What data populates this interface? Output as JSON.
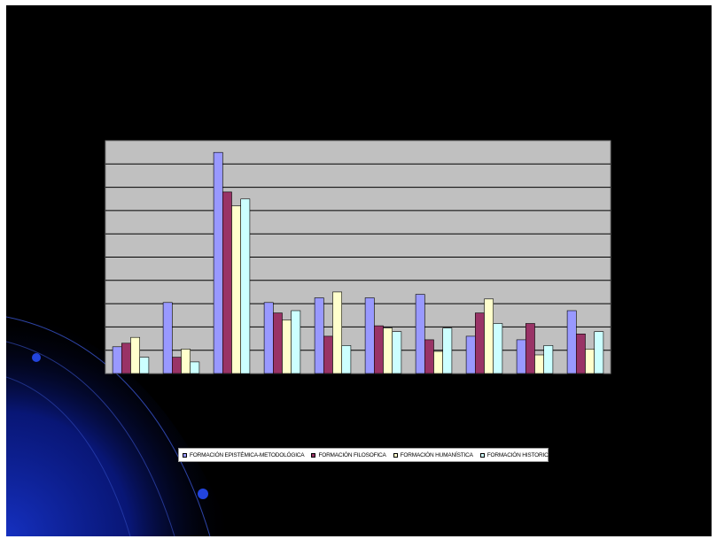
{
  "chart_data": {
    "type": "bar",
    "title": "",
    "xlabel": "",
    "ylabel": "",
    "categories": [
      "",
      "",
      "",
      "",
      "",
      "",
      "",
      "",
      "",
      ""
    ],
    "ylim": [
      0,
      100
    ],
    "grid": true,
    "legend_position": "bottom",
    "series": [
      {
        "name": "FORMACIÓN EPISTÉMICA-METODOLÓGICA",
        "color": "#9999ff",
        "values": [
          11.5,
          30.5,
          95,
          30.5,
          32.5,
          32.5,
          34,
          16,
          14.5,
          27
        ]
      },
      {
        "name": "FORMACIÓN FILOSOFICA",
        "color": "#993366",
        "values": [
          13,
          7,
          78,
          26,
          16,
          20.5,
          14.5,
          26,
          21.5,
          17
        ]
      },
      {
        "name": "FORMACIÓN HUMANÍSTICA",
        "color": "#ffffcc",
        "values": [
          15.5,
          10.5,
          72,
          23,
          35,
          19.5,
          9.5,
          32,
          8,
          10.5
        ]
      },
      {
        "name": "FORMACIÓN HISTORICA",
        "color": "#ccffff",
        "values": [
          7,
          5,
          75,
          27,
          12,
          18,
          19.5,
          21.5,
          12,
          18
        ]
      }
    ]
  },
  "slide": {
    "background": "#000000",
    "plot_background": "#c0c0c0",
    "decoration_color": "#0a1a8a"
  }
}
